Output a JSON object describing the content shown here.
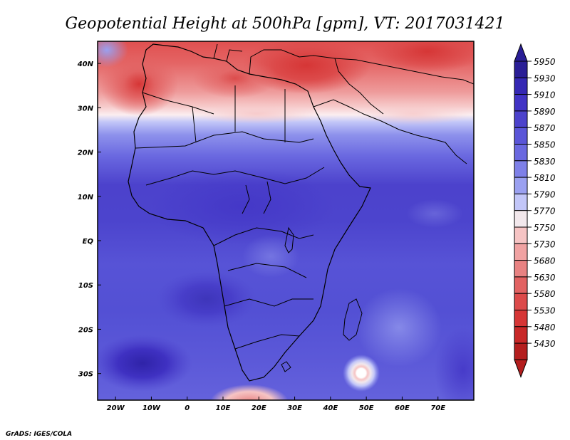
{
  "title": "Geopotential Height at 500hPa [gpm], VT: 2017031421",
  "credit": "GrADS: IGES/COLA",
  "map": {
    "lon_range": [
      -25,
      80
    ],
    "lat_range": [
      -36,
      45
    ],
    "x_ticks": [
      "20W",
      "10W",
      "0",
      "10E",
      "20E",
      "30E",
      "40E",
      "50E",
      "60E",
      "70E"
    ],
    "y_ticks": [
      "40N",
      "30N",
      "20N",
      "10N",
      "EQ",
      "10S",
      "20S",
      "30S"
    ]
  },
  "legend": {
    "levels": [
      "5950",
      "5930",
      "5910",
      "5890",
      "5870",
      "5850",
      "5830",
      "5810",
      "5790",
      "5770",
      "5750",
      "5730",
      "5680",
      "5630",
      "5580",
      "5530",
      "5480",
      "5430"
    ],
    "colors": [
      "#2a1e96",
      "#3528b4",
      "#4133c5",
      "#4c42cc",
      "#5a55d8",
      "#6a68e0",
      "#7e80e8",
      "#9aa0f0",
      "#c2c6f8",
      "#f2e8ec",
      "#f6c4c4",
      "#f0a2a2",
      "#e88282",
      "#e26262",
      "#dc4a4a",
      "#d63636",
      "#c82828",
      "#b41e1e"
    ]
  }
}
